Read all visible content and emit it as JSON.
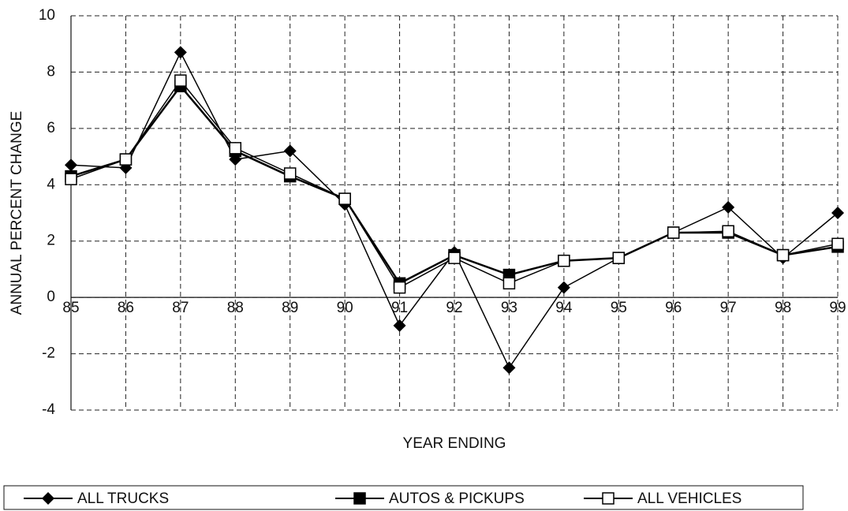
{
  "chart_data": {
    "type": "line",
    "ylabel": "ANNUAL PERCENT CHANGE",
    "xlabel": "YEAR ENDING",
    "x": [
      85,
      86,
      87,
      88,
      89,
      90,
      91,
      92,
      93,
      94,
      95,
      96,
      97,
      98,
      99
    ],
    "xlim": [
      85,
      99
    ],
    "xticks": [
      85,
      86,
      87,
      88,
      89,
      90,
      91,
      92,
      93,
      94,
      95,
      96,
      97,
      98,
      99
    ],
    "ylim": [
      -4,
      10
    ],
    "yticks": [
      -4,
      -2,
      0,
      2,
      4,
      6,
      8,
      10
    ],
    "grid": true,
    "legend": "bottom",
    "series": [
      {
        "name": "ALL TRUCKS",
        "color": "#000000",
        "marker": "diamond",
        "values": [
          4.7,
          4.6,
          8.7,
          4.9,
          5.2,
          3.3,
          -1.0,
          1.6,
          -2.5,
          0.35,
          1.4,
          2.3,
          3.2,
          1.4,
          3.0
        ]
      },
      {
        "name": "AUTOS & PICKUPS",
        "color": "#000000",
        "marker": "square",
        "values": [
          4.3,
          4.9,
          7.5,
          5.2,
          4.3,
          3.5,
          0.5,
          1.5,
          0.8,
          1.3,
          1.4,
          2.3,
          2.3,
          1.5,
          1.8
        ]
      },
      {
        "name": "ALL VEHICLES",
        "color": "#000000",
        "marker": "square-open",
        "values": [
          4.2,
          4.9,
          7.7,
          5.3,
          4.4,
          3.5,
          0.35,
          1.4,
          0.5,
          1.3,
          1.4,
          2.3,
          2.35,
          1.5,
          1.9
        ]
      }
    ]
  }
}
